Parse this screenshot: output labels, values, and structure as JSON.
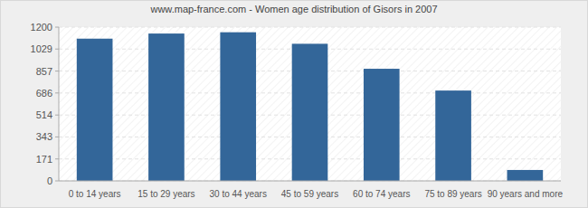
{
  "chart_data": {
    "type": "bar",
    "title": "www.map-france.com - Women age distribution of Gisors in 2007",
    "categories": [
      "0 to 14 years",
      "15 to 29 years",
      "30 to 44 years",
      "45 to 59 years",
      "60 to 74 years",
      "75 to 89 years",
      "90 years and more"
    ],
    "values": [
      1110,
      1150,
      1160,
      1070,
      875,
      705,
      85
    ],
    "color": "#336699",
    "ylim": [
      0,
      1200
    ],
    "yticks": [
      0,
      171,
      343,
      514,
      686,
      857,
      1029,
      1200
    ],
    "grid": true
  }
}
